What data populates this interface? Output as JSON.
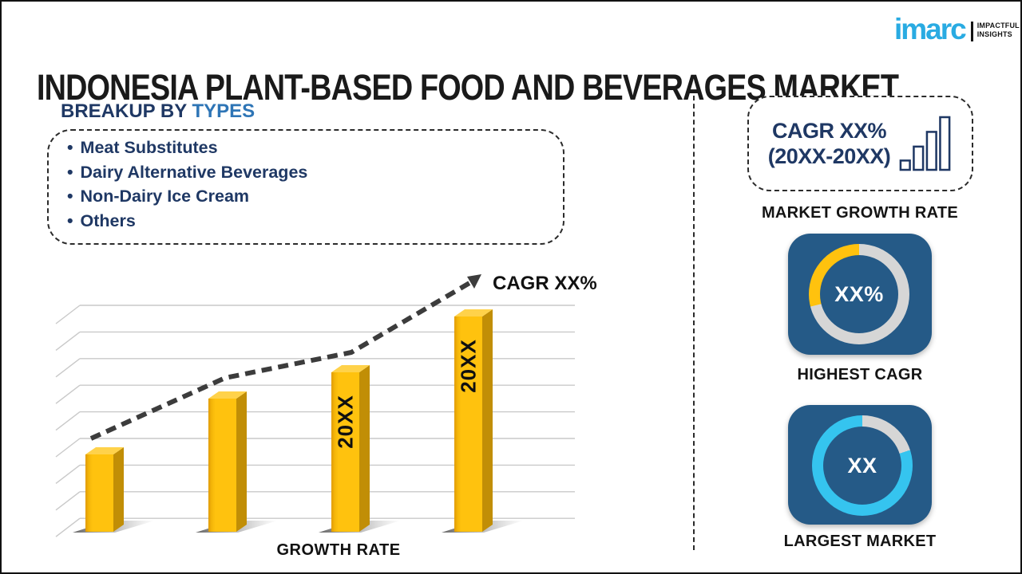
{
  "header": {
    "title": "INDONESIA PLANT-BASED FOOD AND BEVERAGES MARKET"
  },
  "logo": {
    "brand": "imarc",
    "tagline_line1": "IMPACTFUL",
    "tagline_line2": "INSIGHTS",
    "brand_color": "#29ABE2"
  },
  "breakup": {
    "heading_prefix": "BREAKUP BY",
    "heading_highlight": "TYPES",
    "items": [
      "Meat Substitutes",
      "Dairy Alternative Beverages",
      "Non-Dairy Ice Cream",
      "Others"
    ]
  },
  "chart_data": [
    {
      "type": "bar",
      "title": "GROWTH RATE",
      "xlabel": "GROWTH RATE",
      "ylabel": "",
      "categories": [
        "",
        "",
        "20XX",
        "20XX"
      ],
      "bar_labels": [
        "",
        "",
        "20XX",
        "20XX"
      ],
      "values_relative_pct": [
        36,
        62,
        74,
        100
      ],
      "trend_annotation": "CAGR XX%",
      "bar_color": "#FFC20E",
      "bar_side_color": "#C18E06",
      "bar_top_color": "#FFD24A",
      "trend_color": "#3C3C3C",
      "grid": true,
      "gridline_color": "#C9C9C9",
      "legend_position": "none"
    },
    {
      "type": "donut",
      "label": "HIGHEST CAGR",
      "center_text": "XX%",
      "segments": [
        {
          "name": "remainder",
          "value": 71,
          "color": "#D6D6D6"
        },
        {
          "name": "highest-cagr-share",
          "value": 29,
          "color": "#FFC20E"
        }
      ]
    },
    {
      "type": "donut",
      "label": "LARGEST MARKET",
      "center_text": "XX",
      "segments": [
        {
          "name": "remainder",
          "value": 20,
          "color": "#D6D6D6"
        },
        {
          "name": "largest-market-share",
          "value": 80,
          "color": "#35C4EF"
        }
      ]
    }
  ],
  "right_panel": {
    "cagr_card": {
      "line1": "CAGR XX%",
      "line2": "(20XX-20XX)",
      "icon": "ascending-bars-icon"
    },
    "captions": {
      "market_growth_rate": "MARKET GROWTH RATE",
      "highest_cagr": "HIGHEST CAGR",
      "largest_market": "LARGEST MARKET"
    }
  },
  "colors": {
    "navy_text": "#1F3864",
    "blue_highlight": "#2E75B6",
    "panel_navy": "#255A87",
    "ring_gray": "#D6D6D6",
    "donut_cyan": "#35C4EF",
    "bar_gold": "#FFC20E"
  }
}
